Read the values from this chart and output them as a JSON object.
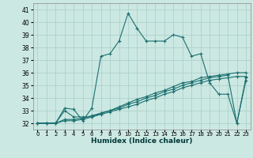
{
  "title": "",
  "xlabel": "Humidex (Indice chaleur)",
  "xlim": [
    -0.5,
    23.5
  ],
  "ylim": [
    31.5,
    41.5
  ],
  "yticks": [
    32,
    33,
    34,
    35,
    36,
    37,
    38,
    39,
    40,
    41
  ],
  "xticks": [
    0,
    1,
    2,
    3,
    4,
    5,
    6,
    7,
    8,
    9,
    10,
    11,
    12,
    13,
    14,
    15,
    16,
    17,
    18,
    19,
    20,
    21,
    22,
    23
  ],
  "background_color": "#cce8e2",
  "grid_color": "#a8cec8",
  "line_color": "#1a7070",
  "lines": [
    [
      32,
      32,
      32,
      33.2,
      33.1,
      32.2,
      33.2,
      37.3,
      37.5,
      38.5,
      40.7,
      39.5,
      38.5,
      38.5,
      38.5,
      39.0,
      38.8,
      37.3,
      37.5,
      35.2,
      34.3,
      34.3,
      32.0,
      35.6
    ],
    [
      32,
      32,
      32,
      33.0,
      32.5,
      32.5,
      32.5,
      32.8,
      33.0,
      33.3,
      33.6,
      33.9,
      34.1,
      34.4,
      34.6,
      34.9,
      35.2,
      35.3,
      35.6,
      35.7,
      35.8,
      35.9,
      36.0,
      36.0
    ],
    [
      32,
      32,
      32,
      32.3,
      32.3,
      32.4,
      32.6,
      32.8,
      33.0,
      33.2,
      33.5,
      33.7,
      34.0,
      34.2,
      34.5,
      34.7,
      35.0,
      35.2,
      35.4,
      35.6,
      35.7,
      35.8,
      32.0,
      35.4
    ],
    [
      32,
      32,
      32,
      32.2,
      32.2,
      32.3,
      32.5,
      32.7,
      32.9,
      33.1,
      33.3,
      33.5,
      33.8,
      34.0,
      34.3,
      34.5,
      34.8,
      35.0,
      35.2,
      35.4,
      35.5,
      35.6,
      35.7,
      35.7
    ]
  ]
}
